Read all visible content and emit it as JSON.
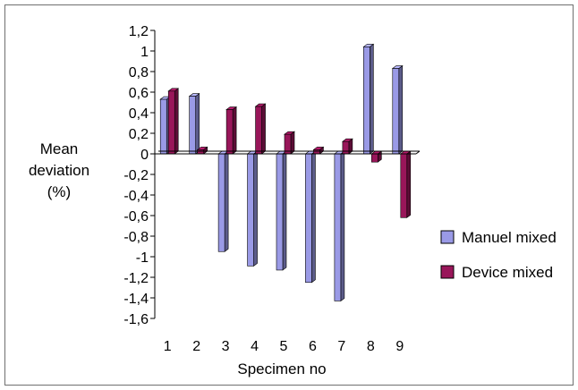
{
  "chart_data": {
    "type": "bar",
    "style": "3d-clustered",
    "categories": [
      "1",
      "2",
      "3",
      "4",
      "5",
      "6",
      "7",
      "8",
      "9"
    ],
    "series": [
      {
        "name": "Manuel mixed",
        "color": "#9a9ae6",
        "values": [
          0.53,
          0.56,
          -0.95,
          -1.09,
          -1.13,
          -1.25,
          -1.43,
          1.04,
          0.83
        ]
      },
      {
        "name": "Device mixed",
        "color": "#99165a",
        "values": [
          0.61,
          0.04,
          0.43,
          0.46,
          0.19,
          0.04,
          0.12,
          -0.08,
          -0.62
        ]
      }
    ],
    "ylim": [
      -1.6,
      1.2
    ],
    "yticks": [
      "1,2",
      "1",
      "0,8",
      "0,6",
      "0,4",
      "0,2",
      "0",
      "-0,2",
      "-0,4",
      "-0,6",
      "-0,8",
      "-1",
      "-1,2",
      "-1,4",
      "-1,6"
    ],
    "ylabel": [
      "Mean",
      "deviation",
      "(%)"
    ],
    "xlabel": "Specimen no",
    "grid": false,
    "legend_position": "right"
  }
}
